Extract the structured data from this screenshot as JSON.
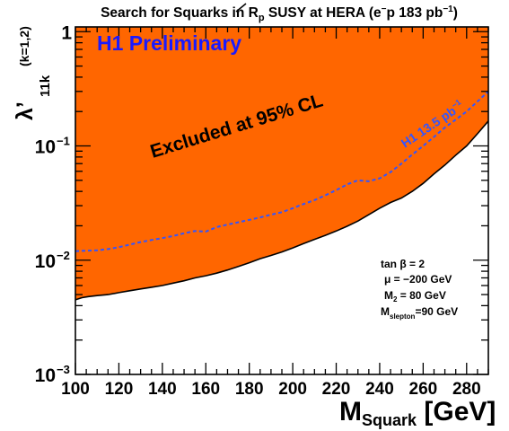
{
  "chart_data": {
    "type": "area",
    "title": {
      "prefix": "Search for Squarks in ",
      "r": "R",
      "r_sub": "p",
      "mid": " SUSY at HERA (e",
      "e_sup": "−",
      "p": "p 183 pb",
      "lumi_sup": "−1",
      "close": ")"
    },
    "ylabel": {
      "main": "λ’",
      "sub": "11k",
      "paren": "(k=1,2)"
    },
    "xlabel": {
      "main": "M",
      "sub": "Squark",
      "unit": " [GeV]"
    },
    "xlim": [
      100,
      290
    ],
    "ylim": [
      0.001,
      1.1
    ],
    "yscale": "log",
    "x_ticks": [
      "100",
      "120",
      "140",
      "160",
      "180",
      "200",
      "220",
      "240",
      "260",
      "280"
    ],
    "x_tick_values": [
      100,
      120,
      140,
      160,
      180,
      200,
      220,
      240,
      260,
      280
    ],
    "y_ticks": [
      {
        "base": "10",
        "exp": "−3",
        "value": 0.001
      },
      {
        "base": "10",
        "exp": "−2",
        "value": 0.01
      },
      {
        "base": "10",
        "exp": "−1",
        "value": 0.1
      },
      {
        "base": "1",
        "exp": "",
        "value": 1
      }
    ],
    "series": [
      {
        "name": "",
        "style": "filled",
        "x": [
          100,
          103,
          106,
          110,
          115,
          120,
          125,
          130,
          135,
          140,
          145,
          150,
          155,
          160,
          165,
          170,
          175,
          180,
          185,
          190,
          195,
          200,
          205,
          210,
          215,
          220,
          225,
          230,
          235,
          240,
          245,
          250,
          255,
          260,
          265,
          270,
          275,
          280,
          285,
          290
        ],
        "y": [
          0.0045,
          0.0047,
          0.0048,
          0.0049,
          0.005,
          0.0052,
          0.0054,
          0.0056,
          0.0058,
          0.006,
          0.0063,
          0.0066,
          0.007,
          0.0073,
          0.0077,
          0.0082,
          0.0088,
          0.0095,
          0.0103,
          0.011,
          0.0118,
          0.0128,
          0.014,
          0.0152,
          0.0165,
          0.018,
          0.0198,
          0.022,
          0.025,
          0.0285,
          0.032,
          0.035,
          0.04,
          0.047,
          0.057,
          0.068,
          0.083,
          0.1,
          0.128,
          0.165
        ]
      },
      {
        "name": "H1 13.5 pb",
        "name_sup": "−1",
        "style": "dashed",
        "x": [
          100,
          105,
          110,
          115,
          120,
          125,
          130,
          135,
          140,
          145,
          150,
          155,
          160,
          165,
          170,
          175,
          180,
          185,
          190,
          195,
          200,
          205,
          210,
          215,
          220,
          225,
          230,
          235,
          240,
          245,
          250,
          255,
          260,
          265,
          270,
          275,
          280,
          285,
          290
        ],
        "y": [
          0.012,
          0.0121,
          0.0122,
          0.0125,
          0.013,
          0.0137,
          0.0144,
          0.015,
          0.0156,
          0.0163,
          0.0172,
          0.018,
          0.0178,
          0.0195,
          0.0205,
          0.0215,
          0.0225,
          0.0237,
          0.025,
          0.0263,
          0.0285,
          0.031,
          0.0335,
          0.037,
          0.041,
          0.046,
          0.05,
          0.049,
          0.052,
          0.059,
          0.07,
          0.084,
          0.1,
          0.12,
          0.145,
          0.17,
          0.2,
          0.245,
          0.3
        ]
      }
    ],
    "grid": false,
    "legend": "none",
    "annotations": {
      "preliminary": "H1 Preliminary",
      "excluded": "Excluded at 95% CL",
      "params": {
        "tanb": "tan β = 2",
        "mu": "μ = −200 GeV",
        "m2_main": "M",
        "m2_sub": "2",
        "m2_rest": " = 80 GeV",
        "ms_main": "M",
        "ms_sub": "slepton",
        "ms_rest": "=90 GeV"
      }
    },
    "colors": {
      "excluded_fill": "#ff6600",
      "limit_line": "#000000",
      "h1_line": "#3355ff",
      "h1_label": "#3355ff",
      "preliminary": "#1a1aff"
    }
  }
}
